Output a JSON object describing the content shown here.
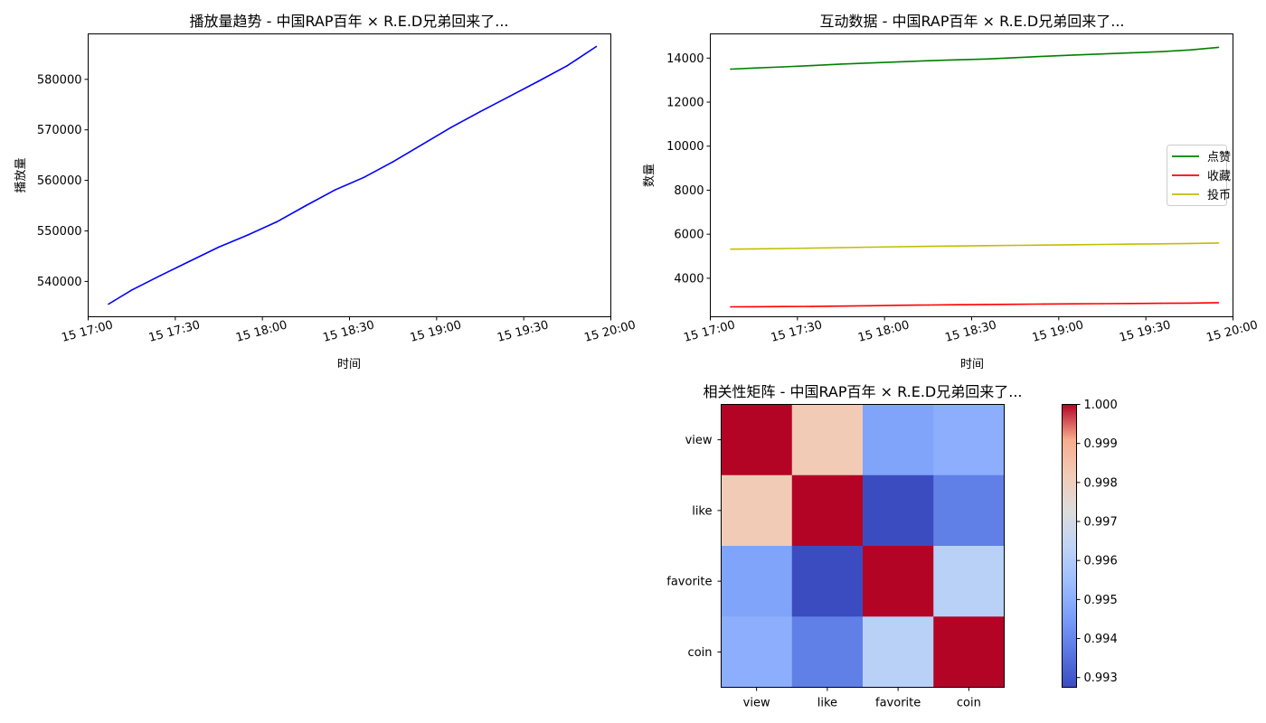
{
  "chart_data": [
    {
      "type": "line",
      "title": "播放量趋势 - 中国RAP百年 × R.E.D兄弟回来了...",
      "xlabel": "时间",
      "ylabel": "播放量",
      "x_ticks": [
        "15 17:00",
        "15 17:30",
        "15 18:00",
        "15 18:30",
        "15 19:00",
        "15 19:30",
        "15 20:00"
      ],
      "x_range": [
        "17:00",
        "20:00"
      ],
      "ylim": [
        533000,
        589000
      ],
      "y_ticks": [
        "540000",
        "550000",
        "560000",
        "570000",
        "580000"
      ],
      "y_tick_values": [
        540000,
        550000,
        560000,
        570000,
        580000
      ],
      "grid": false,
      "series": [
        {
          "color": "#0000ff",
          "x": [
            "17:07",
            "17:15",
            "17:25",
            "17:35",
            "17:45",
            "17:55",
            "18:05",
            "18:15",
            "18:25",
            "18:35",
            "18:45",
            "18:55",
            "19:05",
            "19:15",
            "19:25",
            "19:35",
            "19:45",
            "19:55"
          ],
          "values": [
            535500,
            538300,
            541200,
            544000,
            546800,
            549200,
            551800,
            555000,
            558100,
            560600,
            563700,
            567100,
            570500,
            573600,
            576600,
            579600,
            582700,
            586500
          ]
        }
      ]
    },
    {
      "type": "line",
      "title": "互动数据 - 中国RAP百年 × R.E.D兄弟回来了...",
      "xlabel": "时间",
      "ylabel": "数量",
      "x_ticks": [
        "15 17:00",
        "15 17:30",
        "15 18:00",
        "15 18:30",
        "15 19:00",
        "15 19:30",
        "15 20:00"
      ],
      "x_range": [
        "17:00",
        "20:00"
      ],
      "ylim": [
        2250,
        15100
      ],
      "y_ticks": [
        "4000",
        "6000",
        "8000",
        "10000",
        "12000",
        "14000"
      ],
      "y_tick_values": [
        4000,
        6000,
        8000,
        10000,
        12000,
        14000
      ],
      "grid": false,
      "legend": "center-right",
      "series": [
        {
          "name": "点赞",
          "color": "#008000",
          "x": [
            "17:07",
            "17:15",
            "17:25",
            "17:35",
            "17:45",
            "17:55",
            "18:05",
            "18:15",
            "18:25",
            "18:35",
            "18:45",
            "18:55",
            "19:05",
            "19:15",
            "19:25",
            "19:35",
            "19:45",
            "19:55"
          ],
          "values": [
            13500,
            13550,
            13600,
            13660,
            13730,
            13780,
            13830,
            13880,
            13920,
            13960,
            14020,
            14080,
            14140,
            14190,
            14240,
            14290,
            14370,
            14490
          ]
        },
        {
          "name": "收藏",
          "color": "#ff0000",
          "x": [
            "17:07",
            "17:15",
            "17:25",
            "17:35",
            "17:45",
            "17:55",
            "18:05",
            "18:15",
            "18:25",
            "18:35",
            "18:45",
            "18:55",
            "19:05",
            "19:15",
            "19:25",
            "19:35",
            "19:45",
            "19:55"
          ],
          "values": [
            2700,
            2705,
            2712,
            2720,
            2735,
            2750,
            2770,
            2782,
            2795,
            2808,
            2818,
            2828,
            2838,
            2845,
            2852,
            2860,
            2870,
            2890
          ]
        },
        {
          "name": "投币",
          "color": "#bfbf00",
          "x": [
            "17:07",
            "17:15",
            "17:25",
            "17:35",
            "17:45",
            "17:55",
            "18:05",
            "18:15",
            "18:25",
            "18:35",
            "18:45",
            "18:55",
            "19:05",
            "19:15",
            "19:25",
            "19:35",
            "19:45",
            "19:55"
          ],
          "values": [
            5320,
            5335,
            5350,
            5370,
            5390,
            5410,
            5430,
            5450,
            5465,
            5480,
            5495,
            5505,
            5520,
            5535,
            5550,
            5565,
            5580,
            5600
          ]
        }
      ]
    },
    {
      "type": "heatmap",
      "title": "相关性矩阵 - 中国RAP百年 × R.E.D兄弟回来了...",
      "row_labels": [
        "view",
        "like",
        "favorite",
        "coin"
      ],
      "col_labels": [
        "view",
        "like",
        "favorite",
        "coin"
      ],
      "values": [
        [
          1.0,
          0.9982,
          0.9947,
          0.995
        ],
        [
          0.9982,
          1.0,
          0.99275,
          0.99385
        ],
        [
          0.9947,
          0.99275,
          1.0,
          0.9962
        ],
        [
          0.995,
          0.99385,
          0.9962,
          1.0
        ]
      ],
      "colormap": "coolwarm",
      "vmin": 0.99275,
      "vmax": 1.0,
      "colorbar_ticks": [
        "0.993",
        "0.994",
        "0.995",
        "0.996",
        "0.997",
        "0.998",
        "0.999",
        "1.000"
      ],
      "colorbar_tick_values": [
        0.993,
        0.994,
        0.995,
        0.996,
        0.997,
        0.998,
        0.999,
        1.0
      ]
    }
  ]
}
